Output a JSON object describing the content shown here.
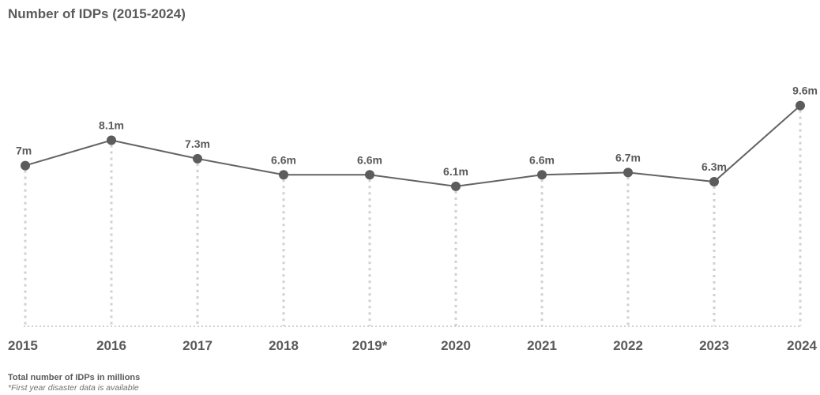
{
  "title": "Number of IDPs (2015-2024)",
  "footer": {
    "note": "Total number of IDPs in millions",
    "footnote": "*First year disaster data is available"
  },
  "colors": {
    "line": "#636363",
    "marker": "#5c5c5c",
    "gridline": "#d0d0d0",
    "text": "#5a5a5a"
  },
  "chart_data": {
    "type": "line",
    "title": "Number of IDPs (2015-2024)",
    "xlabel": "",
    "ylabel": "",
    "categories": [
      "2015",
      "2016",
      "2017",
      "2018",
      "2019*",
      "2020",
      "2021",
      "2022",
      "2023",
      "2024"
    ],
    "series": [
      {
        "values": [
          7.0,
          8.1,
          7.3,
          6.6,
          6.6,
          6.1,
          6.6,
          6.7,
          6.3,
          9.6
        ],
        "labels": [
          "7m",
          "8.1m",
          "7.3m",
          "6.6m",
          "6.6m",
          "6.1m",
          "6.6m",
          "6.7m",
          "6.3m",
          "9.6m"
        ]
      }
    ],
    "unit": "millions",
    "grid": "vertical dotted lines at each category",
    "legend": "none"
  }
}
